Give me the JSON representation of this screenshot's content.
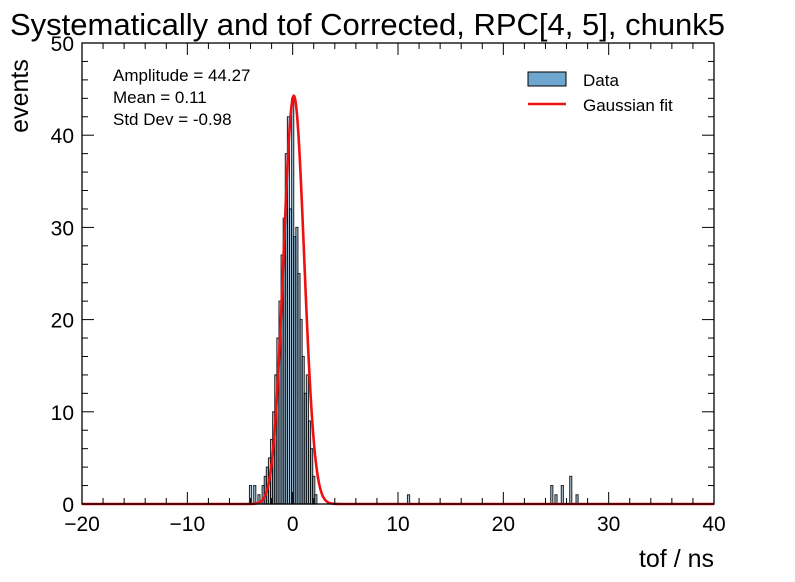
{
  "chart_data": {
    "type": "bar",
    "title": "Systematically and tof Corrected, RPC[4, 5], chunk5",
    "xlabel": "tof / ns",
    "ylabel": "events",
    "xlim": [
      -20,
      40
    ],
    "ylim": [
      0,
      50
    ],
    "xticks": [
      -20,
      -10,
      0,
      10,
      20,
      30,
      40
    ],
    "xtick_labels": [
      "−20",
      "−10",
      "0",
      "10",
      "20",
      "30",
      "40"
    ],
    "yticks": [
      0,
      10,
      20,
      30,
      40,
      50
    ],
    "ytick_labels": [
      "0",
      "10",
      "20",
      "30",
      "40",
      "50"
    ],
    "grid": false,
    "legend_position": "top-right",
    "legend": [
      "Data",
      "Gaussian fit"
    ],
    "annotations": [
      "Amplitude = 44.27",
      "Mean = 0.11",
      "Std Dev = -0.98"
    ],
    "colors": {
      "data_fill": "#6ea6cf",
      "data_edge": "#000000",
      "fit_line": "#ee1111"
    },
    "series": [
      {
        "name": "Data",
        "kind": "histogram",
        "bin_width": 0.2,
        "bin_centers": [
          -4.0,
          -3.6,
          -3.2,
          -2.8,
          -2.6,
          -2.4,
          -2.2,
          -2.0,
          -1.8,
          -1.6,
          -1.4,
          -1.2,
          -1.0,
          -0.8,
          -0.6,
          -0.4,
          -0.2,
          0.0,
          0.2,
          0.4,
          0.6,
          0.8,
          1.0,
          1.2,
          1.4,
          1.6,
          1.8,
          2.0,
          2.2,
          11.0,
          24.6,
          25.0,
          25.6,
          26.4,
          27.0
        ],
        "values": [
          2,
          2,
          1,
          2,
          3,
          4,
          5,
          7,
          10,
          14,
          18,
          22,
          27,
          31,
          38,
          42,
          32,
          44,
          29,
          30,
          25,
          20,
          16,
          12,
          14,
          9,
          6,
          3,
          1,
          1,
          2,
          1,
          2,
          3,
          1
        ]
      },
      {
        "name": "Gaussian fit",
        "kind": "gaussian",
        "amplitude": 44.27,
        "mean": 0.11,
        "sigma": -0.98
      }
    ]
  }
}
